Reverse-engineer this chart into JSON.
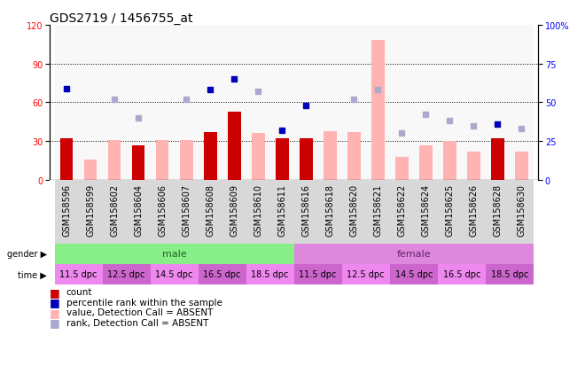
{
  "title": "GDS2719 / 1456755_at",
  "samples": [
    "GSM158596",
    "GSM158599",
    "GSM158602",
    "GSM158604",
    "GSM158606",
    "GSM158607",
    "GSM158608",
    "GSM158609",
    "GSM158610",
    "GSM158611",
    "GSM158616",
    "GSM158618",
    "GSM158620",
    "GSM158621",
    "GSM158622",
    "GSM158624",
    "GSM158625",
    "GSM158626",
    "GSM158628",
    "GSM158630"
  ],
  "count_values": [
    32,
    null,
    null,
    27,
    null,
    null,
    37,
    53,
    null,
    32,
    32,
    null,
    null,
    null,
    null,
    null,
    null,
    null,
    32,
    null
  ],
  "absent_values": [
    null,
    16,
    31,
    null,
    31,
    31,
    null,
    null,
    36,
    null,
    null,
    38,
    37,
    108,
    18,
    27,
    30,
    22,
    null,
    22
  ],
  "rank_present": [
    59,
    null,
    null,
    null,
    null,
    null,
    58,
    65,
    null,
    32,
    48,
    null,
    null,
    null,
    null,
    null,
    null,
    null,
    36,
    null
  ],
  "rank_absent": [
    null,
    null,
    52,
    40,
    null,
    52,
    null,
    null,
    57,
    null,
    null,
    null,
    52,
    58,
    30,
    42,
    38,
    35,
    null,
    33
  ],
  "time_groups": [
    {
      "label": "11.5 dpc",
      "samples": [
        "GSM158596",
        "GSM158599"
      ]
    },
    {
      "label": "12.5 dpc",
      "samples": [
        "GSM158602",
        "GSM158604"
      ]
    },
    {
      "label": "14.5 dpc",
      "samples": [
        "GSM158606",
        "GSM158607"
      ]
    },
    {
      "label": "16.5 dpc",
      "samples": [
        "GSM158608",
        "GSM158609"
      ]
    },
    {
      "label": "18.5 dpc",
      "samples": [
        "GSM158610",
        "GSM158611"
      ]
    },
    {
      "label": "11.5 dpc",
      "samples": [
        "GSM158616",
        "GSM158618"
      ]
    },
    {
      "label": "12.5 dpc",
      "samples": [
        "GSM158620",
        "GSM158621"
      ]
    },
    {
      "label": "14.5 dpc",
      "samples": [
        "GSM158622",
        "GSM158624"
      ]
    },
    {
      "label": "16.5 dpc",
      "samples": [
        "GSM158625",
        "GSM158626"
      ]
    },
    {
      "label": "18.5 dpc",
      "samples": [
        "GSM158628",
        "GSM158630"
      ]
    }
  ],
  "male_samples": 10,
  "female_samples": 10,
  "ylim_left": [
    0,
    120
  ],
  "ylim_right": [
    0,
    100
  ],
  "yticks_left": [
    0,
    30,
    60,
    90,
    120
  ],
  "yticks_right": [
    0,
    25,
    50,
    75,
    100
  ],
  "ytick_right_labels": [
    "0",
    "25",
    "50",
    "75",
    "100%"
  ],
  "bar_width": 0.55,
  "count_color": "#cc0000",
  "absent_bar_color": "#ffb3b3",
  "rank_present_color": "#0000bb",
  "rank_absent_color": "#aaaacc",
  "bg_color": "#ffffff",
  "gender_male_color": "#88ee88",
  "gender_female_color": "#dd88dd",
  "time_color_a": "#ee88ee",
  "time_color_b": "#cc66cc",
  "title_fontsize": 10,
  "tick_fontsize": 7,
  "label_fontsize": 8,
  "legend_fontsize": 7.5
}
